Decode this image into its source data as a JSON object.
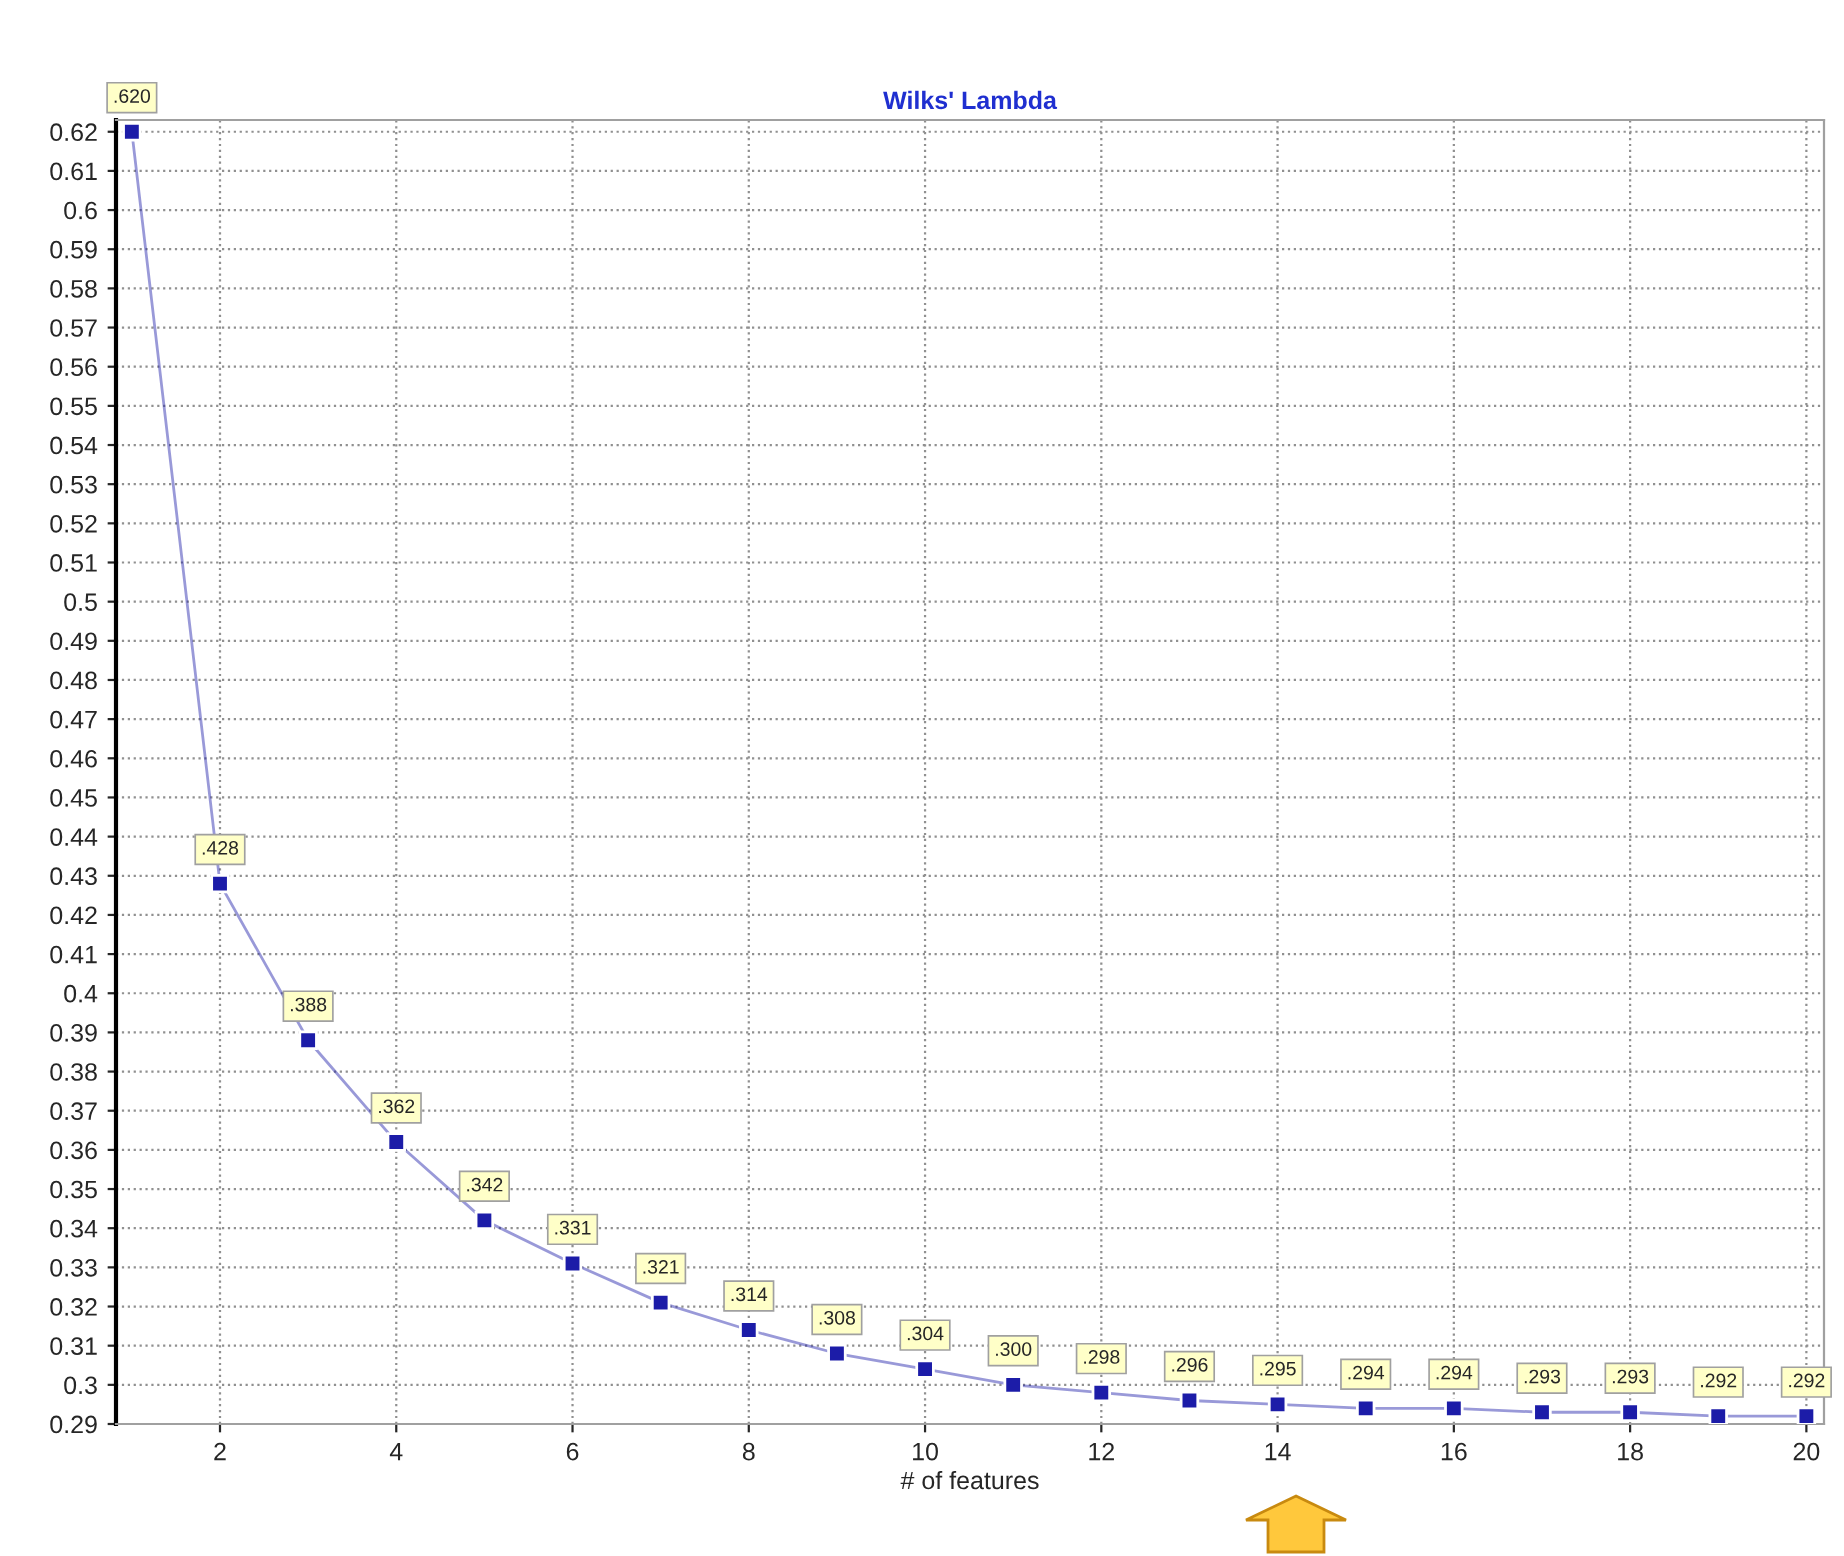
{
  "chart_data": {
    "type": "line",
    "title": "Wilks' Lambda",
    "xlabel": "# of features",
    "x": [
      1,
      2,
      3,
      4,
      5,
      6,
      7,
      8,
      9,
      10,
      11,
      12,
      13,
      14,
      15,
      16,
      17,
      18,
      19,
      20
    ],
    "series": [
      {
        "color": "#1c1ca8",
        "values": [
          0.62,
          0.428,
          0.388,
          0.362,
          0.342,
          0.331,
          0.321,
          0.314,
          0.308,
          0.304,
          0.3,
          0.298,
          0.296,
          0.295,
          0.294,
          0.294,
          0.293,
          0.293,
          0.292,
          0.292
        ],
        "value_labels": [
          ".620",
          ".428",
          ".388",
          ".362",
          ".342",
          ".331",
          ".321",
          ".314",
          ".308",
          ".304",
          ".300",
          ".298",
          ".296",
          ".295",
          ".294",
          ".294",
          ".293",
          ".293",
          ".292",
          ".292"
        ]
      }
    ],
    "xlim": [
      0.82,
      20.2
    ],
    "xticks": [
      2,
      4,
      6,
      8,
      10,
      12,
      14,
      16,
      18,
      20
    ],
    "ylim": [
      0.29,
      0.623
    ],
    "yticks": [
      0.29,
      0.3,
      0.31,
      0.32,
      0.33,
      0.34,
      0.35,
      0.36,
      0.37,
      0.38,
      0.39,
      0.4,
      0.41,
      0.42,
      0.43,
      0.44,
      0.45,
      0.46,
      0.47,
      0.48,
      0.49,
      0.5,
      0.51,
      0.52,
      0.53,
      0.54,
      0.55,
      0.56,
      0.57,
      0.58,
      0.59,
      0.6,
      0.61,
      0.62
    ],
    "grid": true,
    "marker": "square",
    "line_style": "solid",
    "legend": false
  }
}
